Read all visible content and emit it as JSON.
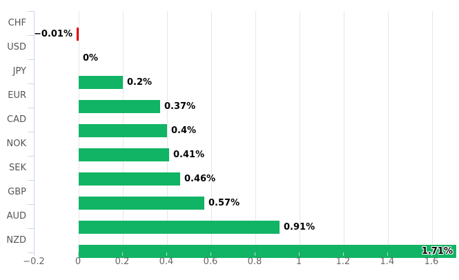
{
  "chart": {
    "background_color": "#ffffff",
    "positive_bar_color": "#10b464",
    "negative_bar_color": "#e50000",
    "gridline_color": "#e6e6e6",
    "axis_line_color": "#ccd6eb",
    "category_label_color": "#555555",
    "tick_label_color": "#666666",
    "data_label_color": "#000000"
  },
  "chart_data": {
    "type": "bar",
    "orientation": "horizontal",
    "title": "",
    "xlabel": "",
    "ylabel": "",
    "legend": false,
    "grid": true,
    "categories": [
      "CHF",
      "USD",
      "JPY",
      "EUR",
      "CAD",
      "NOK",
      "SEK",
      "GBP",
      "AUD",
      "NZD"
    ],
    "values": [
      -0.01,
      0,
      0.2,
      0.37,
      0.4,
      0.41,
      0.46,
      0.57,
      0.91,
      1.71
    ],
    "data_labels": [
      "−0.01%",
      "0%",
      "0.2%",
      "0.37%",
      "0.4%",
      "0.41%",
      "0.46%",
      "0.57%",
      "0.91%",
      "1.71%"
    ],
    "xlim": [
      -0.2,
      1.725
    ],
    "x_ticks": [
      -0.2,
      0,
      0.2,
      0.4,
      0.6,
      0.8,
      1,
      1.2,
      1.4,
      1.6
    ],
    "x_tick_labels": [
      "−0.2",
      "0",
      "0.2",
      "0.4",
      "0.6",
      "0.8",
      "1",
      "1.2",
      "1.4",
      "1.6"
    ]
  }
}
